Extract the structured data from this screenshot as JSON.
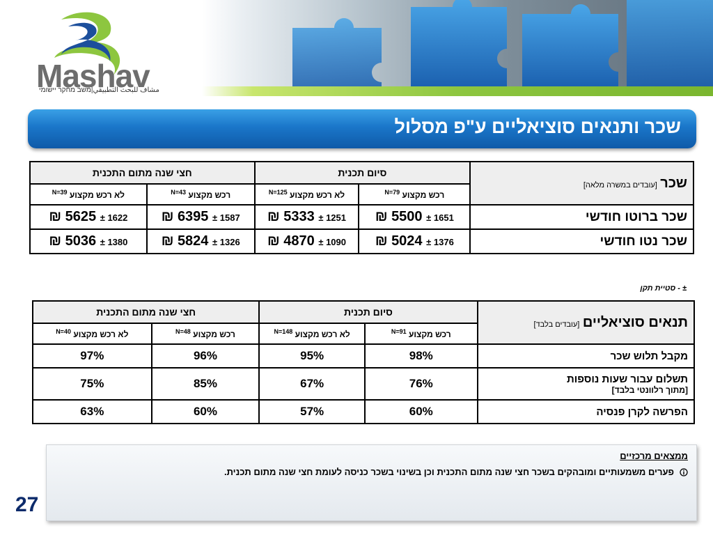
{
  "header": {
    "logo_word": "Mashav",
    "logo_tagline": "مشاف للبحث التطبيقي|משב מחקר יישומי"
  },
  "title": "שכר ותנאים סוציאליים ע\"פ מסלול",
  "salary_table": {
    "corner_main": "שכר",
    "corner_sub": "[עובדים במשרה מלאה]",
    "group_headers": [
      "סיום תכנית",
      "חצי שנה מתום התכנית"
    ],
    "sub_headers": [
      {
        "label": "רכש מקצוע",
        "n": "N=79"
      },
      {
        "label": "לא רכש מקצוע",
        "n": "N=125"
      },
      {
        "label": "רכש מקצוע",
        "n": "N=43"
      },
      {
        "label": "לא רכש מקצוע",
        "n": "N=39"
      }
    ],
    "rows": [
      {
        "label": "שכר ברוטו חודשי",
        "cells": [
          {
            "sd": "1651 ±",
            "mean": "5500 ₪"
          },
          {
            "sd": "1251 ±",
            "mean": "5333 ₪"
          },
          {
            "sd": "1587 ±",
            "mean": "6395 ₪"
          },
          {
            "sd": "1622 ±",
            "mean": "5625 ₪"
          }
        ]
      },
      {
        "label": "שכר נטו חודשי",
        "cells": [
          {
            "sd": "1376 ±",
            "mean": "5024 ₪"
          },
          {
            "sd": "1090 ±",
            "mean": "4870 ₪"
          },
          {
            "sd": "1326 ±",
            "mean": "5824 ₪"
          },
          {
            "sd": "1380 ±",
            "mean": "5036 ₪"
          }
        ]
      }
    ]
  },
  "note": "± - סטיית תקן",
  "social_table": {
    "corner_main": "תנאים סוציאליים",
    "corner_sub": "[עובדים בלבד]",
    "group_headers": [
      "סיום תכנית",
      "חצי שנה מתום התכנית"
    ],
    "sub_headers": [
      {
        "label": "רכש מקצוע",
        "n": "N=91"
      },
      {
        "label": "לא רכש מקצוע",
        "n": "N=148"
      },
      {
        "label": "רכש מקצוע",
        "n": "N=48"
      },
      {
        "label": "לא רכש מקצוע",
        "n": "N=40"
      }
    ],
    "rows": [
      {
        "label": "מקבל תלוש שכר",
        "sub": "",
        "values": [
          "98%",
          "95%",
          "96%",
          "97%"
        ]
      },
      {
        "label": "תשלום עבור שעות נוספות",
        "sub": "[מתוך רלוונטי בלבד]",
        "values": [
          "76%",
          "67%",
          "85%",
          "75%"
        ]
      },
      {
        "label": "הפרשה לקרן פנסיה",
        "sub": "",
        "values": [
          "60%",
          "57%",
          "60%",
          "63%"
        ]
      }
    ]
  },
  "findings": {
    "title": "ממצאים מרכזיים",
    "bullet_icon": "info-circle-icon",
    "bullet": "פערים משמעותיים ומובהקים בשכר חצי שנה מתום התכנית וכן בשינוי בשכר כניסה לעומת חצי שנה מתום תכנית."
  },
  "page_number": "27"
}
